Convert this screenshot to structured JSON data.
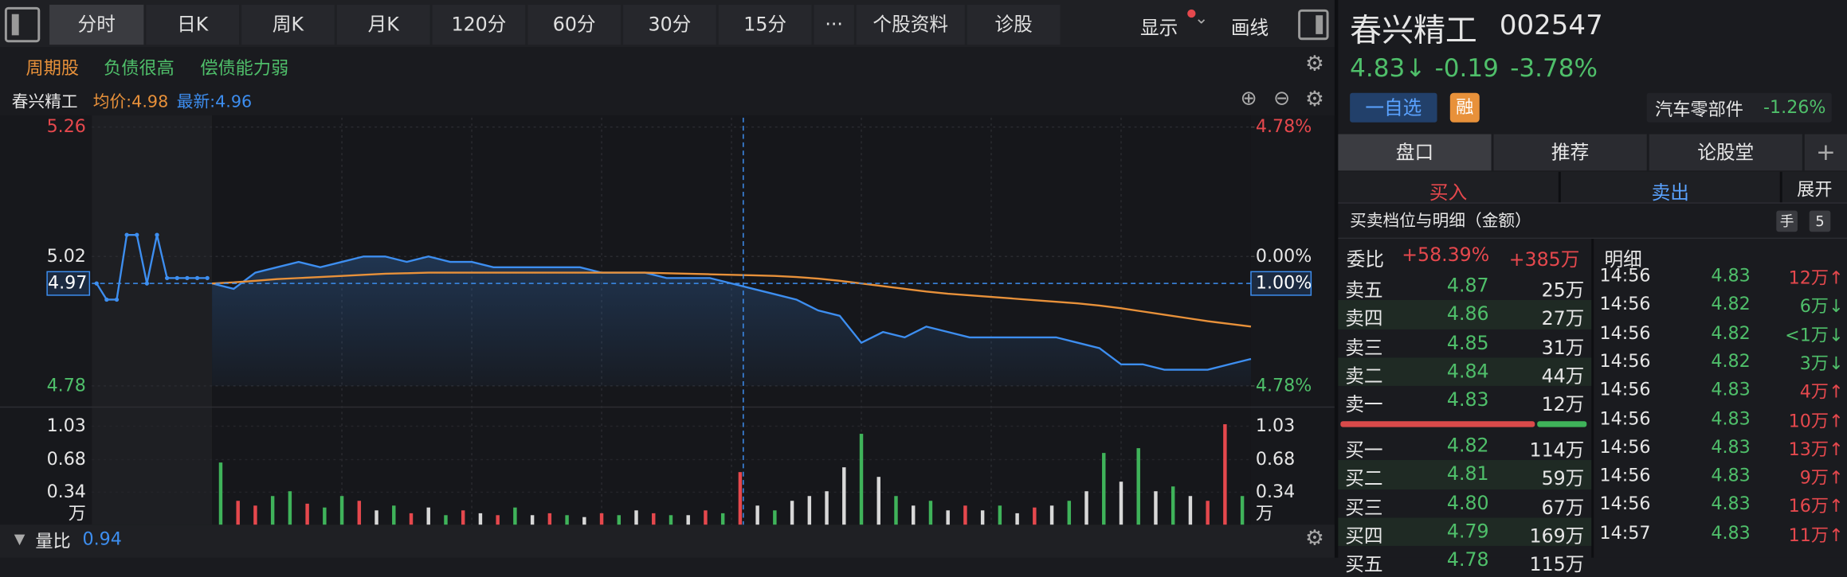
{
  "toolbar": {
    "tabs": [
      "分时",
      "日K",
      "周K",
      "月K",
      "120分",
      "60分",
      "30分",
      "15分",
      "···",
      "个股资料",
      "诊股"
    ],
    "display": "显示",
    "draw": "画线"
  },
  "tags": [
    "周期股",
    "负债很高",
    "偿债能力弱"
  ],
  "chart_header": {
    "name": "春兴精工",
    "avg": "均价:4.98",
    "latest": "最新:4.96"
  },
  "chart_data": {
    "type": "line",
    "ylim": [
      4.78,
      5.26
    ],
    "yticks": [
      5.26,
      5.02,
      4.78
    ],
    "y2lim": [
      -4.78,
      4.78
    ],
    "y2ticks": [
      {
        "value": 4.78,
        "label": "4.78%"
      },
      {
        "value": 0,
        "label": "0.00%"
      },
      {
        "value": -4.78,
        "label": "4.78%"
      }
    ],
    "crosshair": {
      "y": 4.97,
      "y2": {
        "value": -1.0,
        "label": "1.00%"
      }
    },
    "series": [
      {
        "color": "#3d8ef0",
        "values": [
          4.97,
          4.96,
          4.99,
          5.0,
          5.01,
          5.0,
          5.01,
          5.02,
          5.02,
          5.01,
          5.02,
          5.01,
          5.01,
          5.0,
          5.0,
          5.0,
          5.0,
          5.0,
          4.99,
          4.99,
          4.99,
          4.98,
          4.98,
          4.98,
          4.97,
          4.96,
          4.95,
          4.94,
          4.92,
          4.91,
          4.86,
          4.88,
          4.87,
          4.89,
          4.88,
          4.87,
          4.87,
          4.87,
          4.87,
          4.87,
          4.86,
          4.85,
          4.82,
          4.82,
          4.81,
          4.81,
          4.81,
          4.82,
          4.83
        ]
      },
      {
        "color": "#e8913a",
        "values": [
          4.97,
          4.972,
          4.975,
          4.978,
          4.98,
          4.982,
          4.984,
          4.986,
          4.988,
          4.989,
          4.99,
          4.99,
          4.99,
          4.99,
          4.99,
          4.99,
          4.99,
          4.99,
          4.99,
          4.99,
          4.99,
          4.989,
          4.988,
          4.987,
          4.986,
          4.985,
          4.984,
          4.982,
          4.979,
          4.975,
          4.97,
          4.965,
          4.96,
          4.955,
          4.951,
          4.948,
          4.945,
          4.942,
          4.939,
          4.936,
          4.933,
          4.929,
          4.924,
          4.918,
          4.912,
          4.906,
          4.9,
          4.895,
          4.89
        ]
      }
    ],
    "auction": {
      "color": "#3d8ef0",
      "values": [
        4.97,
        4.94,
        4.94,
        5.06,
        5.06,
        4.97,
        5.06,
        4.98,
        4.98,
        4.98,
        4.98,
        4.98
      ]
    },
    "volume": {
      "ylim": [
        0,
        1.18
      ],
      "yticks": [
        1.03,
        0.68,
        0.34
      ],
      "unit": "万",
      "values": [
        0.65,
        0.25,
        0.2,
        0.3,
        0.35,
        0.22,
        0.18,
        0.3,
        0.25,
        0.15,
        0.2,
        0.12,
        0.18,
        0.1,
        0.15,
        0.12,
        0.1,
        0.18,
        0.1,
        0.12,
        0.1,
        0.08,
        0.12,
        0.1,
        0.15,
        0.12,
        0.1,
        0.1,
        0.15,
        0.12,
        0.55,
        0.2,
        0.15,
        0.25,
        0.3,
        0.35,
        0.6,
        0.95,
        0.5,
        0.3,
        0.2,
        0.25,
        0.15,
        0.2,
        0.15,
        0.2,
        0.12,
        0.18,
        0.2,
        0.25,
        0.35,
        0.75,
        0.45,
        0.8,
        0.35,
        0.4,
        0.3,
        0.25,
        1.05,
        0.3
      ],
      "colors": [
        "#3fb35a",
        "#e5484d",
        "#e5484d",
        "#3fb35a",
        "#3fb35a",
        "#e5484d",
        "#3fb35a",
        "#3fb35a",
        "#e5484d",
        "#d8d8d8",
        "#3fb35a",
        "#e5484d",
        "#d8d8d8",
        "#3fb35a",
        "#e5484d",
        "#d8d8d8",
        "#e5484d",
        "#3fb35a",
        "#d8d8d8",
        "#e5484d",
        "#3fb35a",
        "#d8d8d8",
        "#e5484d",
        "#3fb35a",
        "#d8d8d8",
        "#e5484d",
        "#3fb35a",
        "#d8d8d8",
        "#e5484d",
        "#3fb35a",
        "#e5484d",
        "#d8d8d8",
        "#3fb35a",
        "#d8d8d8",
        "#d8d8d8",
        "#d8d8d8",
        "#d8d8d8",
        "#3fb35a",
        "#d8d8d8",
        "#3fb35a",
        "#d8d8d8",
        "#3fb35a",
        "#d8d8d8",
        "#e5484d",
        "#d8d8d8",
        "#3fb35a",
        "#d8d8d8",
        "#e5484d",
        "#d8d8d8",
        "#3fb35a",
        "#d8d8d8",
        "#3fb35a",
        "#d8d8d8",
        "#3fb35a",
        "#d8d8d8",
        "#3fb35a",
        "#d8d8d8",
        "#e5484d",
        "#e5484d",
        "#3fb35a"
      ]
    }
  },
  "volume_ratio": {
    "label": "量比",
    "value": "0.94"
  },
  "quote": {
    "name": "春兴精工",
    "code": "002547",
    "price": "4.83↓",
    "change": "-0.19",
    "change_pct": "-3.78%",
    "watch": "一自选",
    "margin": "融",
    "sector": "汽车零部件",
    "sector_change": "-1.26%"
  },
  "panel_tabs": [
    "盘口",
    "推荐",
    "论股堂",
    "+"
  ],
  "trade_tabs": [
    "买入",
    "卖出",
    "展开"
  ],
  "book": {
    "title": "买卖档位与明细（金额）",
    "unit": "手",
    "levels": "5",
    "ratio_label": "委比",
    "ratio": "+58.39%",
    "diff": "+385万",
    "asks": [
      [
        "卖五",
        "4.87",
        "25万"
      ],
      [
        "卖四",
        "4.86",
        "27万"
      ],
      [
        "卖三",
        "4.85",
        "31万"
      ],
      [
        "卖二",
        "4.84",
        "44万"
      ],
      [
        "卖一",
        "4.83",
        "12万"
      ]
    ],
    "bids": [
      [
        "买一",
        "4.82",
        "114万"
      ],
      [
        "买二",
        "4.81",
        "59万"
      ],
      [
        "买三",
        "4.80",
        "67万"
      ],
      [
        "买四",
        "4.79",
        "169万"
      ],
      [
        "买五",
        "4.78",
        "115万"
      ]
    ]
  },
  "detail": {
    "title": "明细",
    "rows": [
      [
        "14:56",
        "4.83",
        "12万↑"
      ],
      [
        "14:56",
        "4.82",
        "6万↓"
      ],
      [
        "14:56",
        "4.82",
        "<1万↓"
      ],
      [
        "14:56",
        "4.82",
        "3万↓"
      ],
      [
        "14:56",
        "4.83",
        "4万↑"
      ],
      [
        "14:56",
        "4.83",
        "10万↑"
      ],
      [
        "14:56",
        "4.83",
        "13万↑"
      ],
      [
        "14:56",
        "4.83",
        "9万↑"
      ],
      [
        "14:56",
        "4.83",
        "16万↑"
      ],
      [
        "14:57",
        "4.83",
        "11万↑"
      ]
    ]
  }
}
